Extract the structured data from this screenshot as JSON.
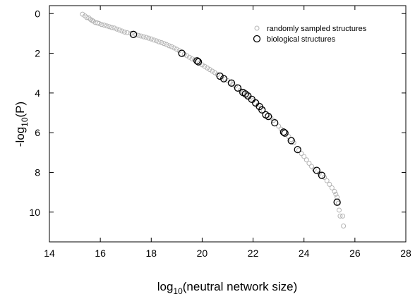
{
  "chart_data": {
    "type": "scatter",
    "xlabel_main": "log",
    "xlabel_sub": "10",
    "xlabel_rest": "(neutral network size)",
    "ylabel_main": "-log",
    "ylabel_sub": "10",
    "ylabel_rest": "(P)",
    "xlim": [
      14,
      28
    ],
    "ylim": [
      11.5,
      -0.4
    ],
    "y_inverted": true,
    "xticks": [
      14,
      16,
      18,
      20,
      22,
      24,
      26,
      28
    ],
    "yticks": [
      0,
      2,
      4,
      6,
      8,
      10
    ],
    "grid": false,
    "legend_position": "top-right",
    "series": [
      {
        "name": "randomly sampled structures",
        "color": "#b4b4b4",
        "marker": "small-open-circle",
        "points": [
          [
            15.3,
            0.03
          ],
          [
            15.4,
            0.12
          ],
          [
            15.47,
            0.2
          ],
          [
            15.55,
            0.22
          ],
          [
            15.62,
            0.3
          ],
          [
            15.68,
            0.35
          ],
          [
            15.72,
            0.38
          ],
          [
            15.8,
            0.45
          ],
          [
            15.88,
            0.47
          ],
          [
            15.95,
            0.5
          ],
          [
            16.05,
            0.55
          ],
          [
            16.15,
            0.58
          ],
          [
            16.25,
            0.62
          ],
          [
            16.35,
            0.66
          ],
          [
            16.45,
            0.7
          ],
          [
            16.55,
            0.73
          ],
          [
            16.65,
            0.78
          ],
          [
            16.75,
            0.83
          ],
          [
            16.85,
            0.88
          ],
          [
            16.95,
            0.93
          ],
          [
            17.05,
            0.96
          ],
          [
            17.2,
            1.0
          ],
          [
            17.4,
            1.06
          ],
          [
            17.5,
            1.1
          ],
          [
            17.6,
            1.13
          ],
          [
            17.7,
            1.17
          ],
          [
            17.8,
            1.2
          ],
          [
            17.9,
            1.24
          ],
          [
            18.0,
            1.28
          ],
          [
            18.1,
            1.33
          ],
          [
            18.2,
            1.37
          ],
          [
            18.3,
            1.42
          ],
          [
            18.4,
            1.46
          ],
          [
            18.5,
            1.51
          ],
          [
            18.6,
            1.56
          ],
          [
            18.7,
            1.62
          ],
          [
            18.8,
            1.67
          ],
          [
            18.9,
            1.73
          ],
          [
            19.0,
            1.8
          ],
          [
            19.1,
            1.87
          ],
          [
            19.3,
            2.05
          ],
          [
            19.4,
            2.12
          ],
          [
            19.5,
            2.2
          ],
          [
            19.6,
            2.28
          ],
          [
            19.7,
            2.33
          ],
          [
            19.9,
            2.5
          ],
          [
            20.0,
            2.58
          ],
          [
            20.1,
            2.66
          ],
          [
            20.2,
            2.74
          ],
          [
            20.3,
            2.82
          ],
          [
            20.4,
            2.9
          ],
          [
            20.5,
            2.98
          ],
          [
            20.6,
            3.07
          ],
          [
            20.9,
            3.3
          ],
          [
            21.0,
            3.38
          ],
          [
            21.1,
            3.47
          ],
          [
            21.2,
            3.56
          ],
          [
            21.3,
            3.65
          ],
          [
            21.5,
            3.86
          ],
          [
            21.6,
            3.95
          ],
          [
            21.8,
            4.15
          ],
          [
            22.0,
            4.38
          ],
          [
            22.2,
            4.6
          ],
          [
            22.4,
            4.88
          ],
          [
            22.7,
            5.25
          ],
          [
            22.8,
            5.38
          ],
          [
            23.0,
            5.67
          ],
          [
            23.1,
            5.82
          ],
          [
            23.4,
            6.2
          ],
          [
            23.5,
            6.35
          ],
          [
            23.6,
            6.5
          ],
          [
            23.8,
            6.88
          ],
          [
            23.9,
            7.05
          ],
          [
            24.0,
            7.2
          ],
          [
            24.1,
            7.37
          ],
          [
            24.2,
            7.54
          ],
          [
            24.3,
            7.7
          ],
          [
            24.4,
            7.85
          ],
          [
            24.6,
            8.05
          ],
          [
            24.8,
            8.25
          ],
          [
            24.9,
            8.42
          ],
          [
            25.0,
            8.6
          ],
          [
            25.1,
            8.78
          ],
          [
            25.2,
            8.96
          ],
          [
            25.25,
            9.1
          ],
          [
            25.3,
            9.25
          ],
          [
            25.35,
            9.55
          ],
          [
            25.38,
            9.9
          ],
          [
            25.42,
            10.2
          ],
          [
            25.52,
            10.2
          ],
          [
            25.55,
            10.7
          ]
        ]
      },
      {
        "name": "biological structures",
        "color": "#000000",
        "marker": "large-open-circle",
        "points": [
          [
            17.3,
            1.05
          ],
          [
            19.2,
            2.0
          ],
          [
            19.8,
            2.38
          ],
          [
            19.85,
            2.43
          ],
          [
            20.7,
            3.15
          ],
          [
            20.85,
            3.28
          ],
          [
            21.15,
            3.5
          ],
          [
            21.4,
            3.75
          ],
          [
            21.6,
            3.97
          ],
          [
            21.7,
            4.05
          ],
          [
            21.8,
            4.15
          ],
          [
            21.95,
            4.32
          ],
          [
            22.1,
            4.5
          ],
          [
            22.25,
            4.68
          ],
          [
            22.35,
            4.85
          ],
          [
            22.5,
            5.1
          ],
          [
            22.6,
            5.18
          ],
          [
            22.85,
            5.5
          ],
          [
            23.2,
            5.97
          ],
          [
            23.25,
            6.02
          ],
          [
            23.5,
            6.4
          ],
          [
            23.75,
            6.85
          ],
          [
            24.5,
            7.9
          ],
          [
            24.7,
            8.15
          ],
          [
            25.3,
            9.5
          ]
        ]
      }
    ]
  },
  "colors": {
    "random_marker": "#b4b4b4",
    "bio_marker": "#000000",
    "axis": "#000000"
  }
}
